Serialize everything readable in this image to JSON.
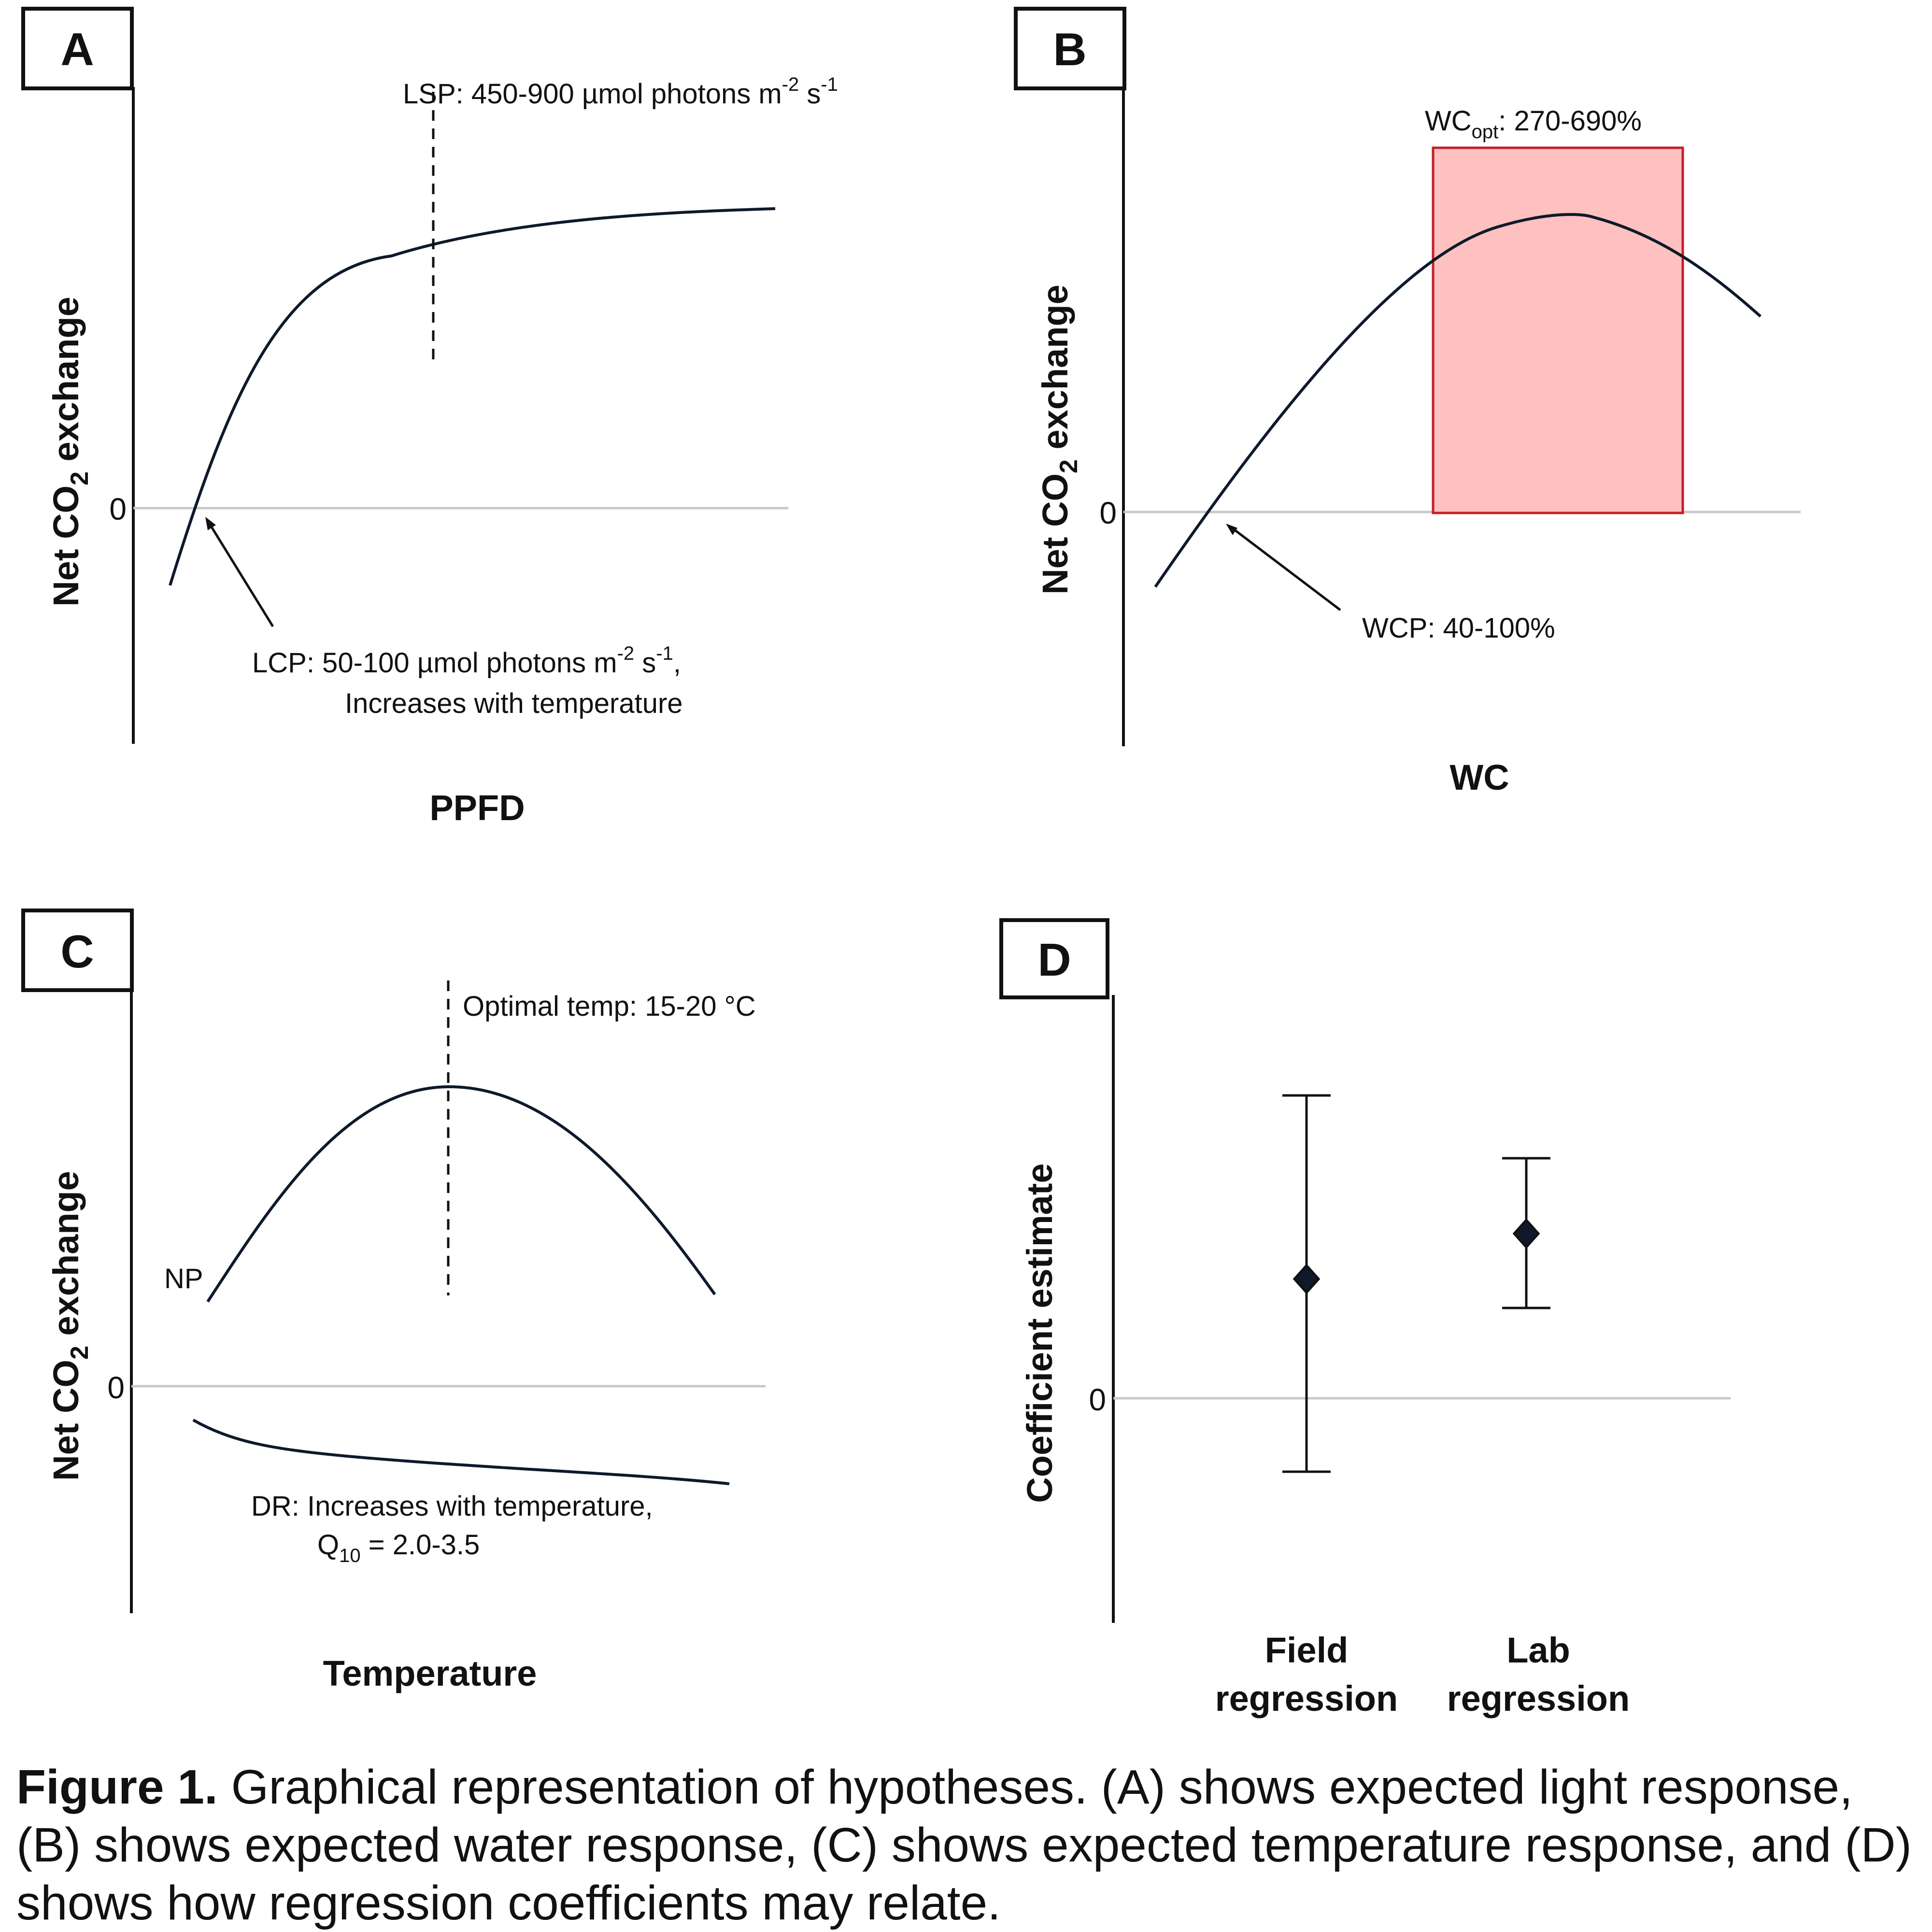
{
  "panels": {
    "a": {
      "label": "A",
      "y_axis": {
        "prefix": "Net CO",
        "sub": "2",
        "suffix": " exchange"
      },
      "zero": "0",
      "x_axis": "PPFD",
      "lsp": {
        "prefix": "LSP: 450-900 µmol photons m",
        "sup1": "-2",
        "mid": " s",
        "sup2": "-1"
      },
      "lcp": {
        "prefix": "LCP: 50-100 µmol photons m",
        "sup1": "-2",
        "mid": " s",
        "sup2": "-1",
        "suffix": ","
      },
      "lcp_line2": "Increases with temperature"
    },
    "b": {
      "label": "B",
      "y_axis": {
        "prefix": "Net CO",
        "sub": "2",
        "suffix": " exchange"
      },
      "zero": "0",
      "x_axis": "WC",
      "wc_opt": {
        "prefix": "WC",
        "sub": "opt",
        "suffix": ": 270-690%"
      },
      "wcp": "WCP: 40-100%",
      "band_fill": "#ffc0c0",
      "band_stroke": "#c41e2a"
    },
    "c": {
      "label": "C",
      "y_axis": {
        "prefix": "Net CO",
        "sub": "2",
        "suffix": " exchange"
      },
      "zero": "0",
      "x_axis": "Temperature",
      "optimal": "Optimal temp: 15-20 °C",
      "np": "NP",
      "dr_line1": "DR: Increases with temperature,",
      "dr_line2": {
        "prefix": "Q",
        "sub": "10",
        "suffix": " = 2.0-3.5"
      }
    },
    "d": {
      "label": "D",
      "y_axis": "Coefficient estimate",
      "zero": "0",
      "categories": [
        {
          "line1": "Field",
          "line2": "regression"
        },
        {
          "line1": "Lab",
          "line2": "regression"
        }
      ]
    }
  },
  "caption": {
    "bold": "Figure 1.",
    "text": " Graphical representation of hypotheses. (A) shows expected light response, (B) shows expected water response, (C) shows expected temperature response, and (D) shows how regression coefficients may relate."
  }
}
